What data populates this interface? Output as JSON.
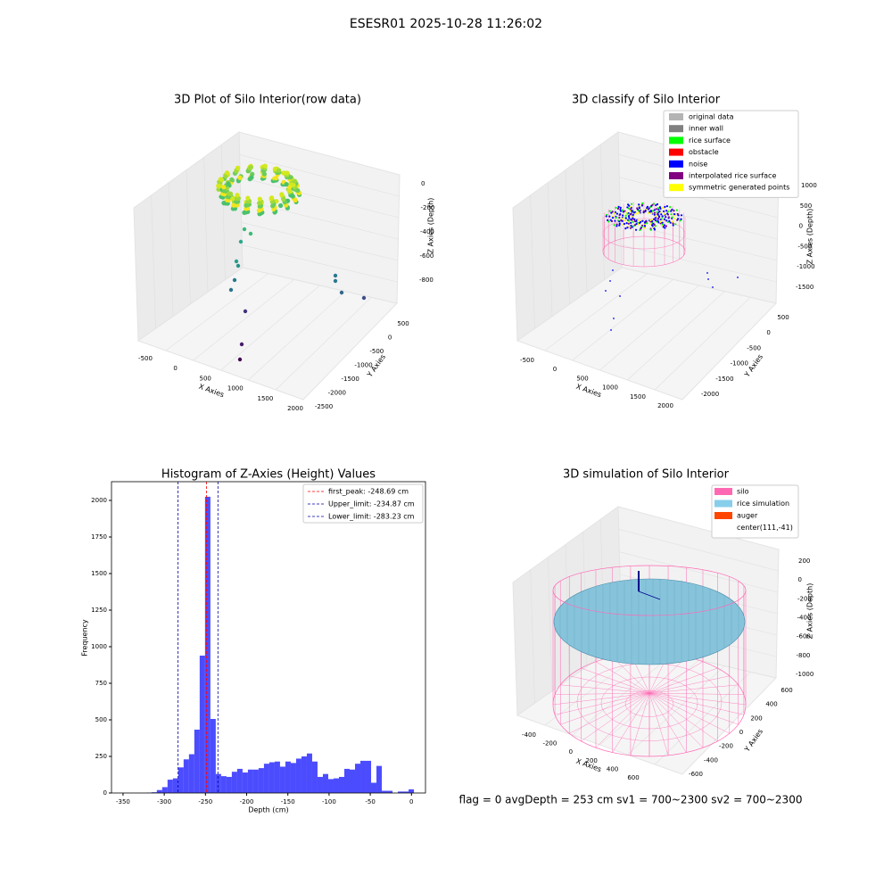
{
  "title": "ESESR01 2025-10-28 11:26:02",
  "footer": "flag = 0     avgDepth = 253 cm  sv1 = 700~2300  sv2 = 700~2300",
  "chart_data": [
    {
      "type": "histogram",
      "title": "Histogram of Z-Axies (Height) Values",
      "x_label": "Depth (cm)",
      "y_label": "Frequency",
      "color": "#0000ff",
      "bins": [
        -322,
        -315.5,
        -309,
        -302.5,
        -296,
        -289.5,
        -283,
        -276.5,
        -270,
        -263.5,
        -257,
        -250.5,
        -244,
        -237.5,
        -231,
        -224.5,
        -218,
        -211.5,
        -205,
        -198.5,
        -192,
        -185.5,
        -179,
        -172.5,
        -166,
        -159.5,
        -153,
        -146.5,
        -140,
        -133.5,
        -127,
        -120.5,
        -114,
        -107.5,
        -101,
        -94.5,
        -88,
        -81.5,
        -75,
        -68.5,
        -62,
        -55.5,
        -49,
        -42.5,
        -36,
        -29.5,
        -23,
        -16.5,
        -10,
        -3.5,
        3
      ],
      "values": [
        2,
        5,
        20,
        40,
        91,
        100,
        175,
        230,
        265,
        433,
        939,
        2025,
        506,
        130,
        115,
        110,
        145,
        165,
        140,
        160,
        160,
        170,
        200,
        210,
        215,
        180,
        215,
        205,
        235,
        250,
        270,
        215,
        110,
        130,
        95,
        100,
        110,
        165,
        160,
        200,
        220,
        220,
        70,
        185,
        15,
        15,
        0,
        10,
        10,
        25
      ],
      "xlim": [
        -364,
        17
      ],
      "ylim": [
        0,
        2128
      ],
      "xticks": [
        -350,
        -300,
        -250,
        -200,
        -150,
        -100,
        -50,
        0
      ],
      "yticks": [
        0,
        250,
        500,
        750,
        1000,
        1250,
        1500,
        1750,
        2000
      ],
      "vlines": [
        {
          "label": "first_peak: -248.69 cm",
          "value": -248.69,
          "color": "#ff0000"
        },
        {
          "label": "Upper_limit: -234.87 cm",
          "value": -234.87,
          "color": "#0000aa"
        },
        {
          "label": "Lower_limit: -283.23 cm",
          "value": -283.23,
          "color": "#0000aa"
        }
      ],
      "legend": "upper right"
    },
    {
      "type": "scatter3d",
      "title": "3D Plot of Silo Interior(row data)",
      "x_label": "X Axies",
      "y_label": "Y Axies",
      "z_label": "Z Axies (Depth)",
      "xticks": [
        -500,
        0,
        500,
        1000,
        1500,
        2000
      ],
      "yticks": [
        500,
        0,
        -500,
        -1000,
        -1500,
        -2000,
        -2500
      ],
      "zticks": [
        0,
        -200,
        -400,
        -600,
        -800
      ]
    },
    {
      "type": "scatter3d",
      "title": "3D classify of Silo Interior",
      "x_label": "X Axies",
      "y_label": "Y Axies",
      "z_label": "Z Axies (Depth)",
      "xticks": [
        -500,
        0,
        500,
        1000,
        1500,
        2000
      ],
      "yticks": [
        500,
        0,
        -500,
        -1000,
        -1500,
        -2000
      ],
      "zticks": [
        1000,
        500,
        0,
        -500,
        -1000,
        -1500
      ],
      "legend_entries": [
        {
          "name": "original data",
          "color": "#b4b4b4"
        },
        {
          "name": "inner wall",
          "color": "#808080"
        },
        {
          "name": "rice surface",
          "color": "#00ff00"
        },
        {
          "name": "obstacle",
          "color": "#ff0000"
        },
        {
          "name": "noise",
          "color": "#0000ff"
        },
        {
          "name": "interpolated rice surface",
          "color": "#800080"
        },
        {
          "name": "symmetric generated points",
          "color": "#ffff00"
        }
      ]
    },
    {
      "type": "surface3d",
      "title": "3D simulation of Silo Interior",
      "x_label": "X Axies",
      "y_label": "Y Axies",
      "z_label": "Z Axies (Depth)",
      "xticks": [
        -400,
        -200,
        0,
        200,
        400,
        600
      ],
      "yticks": [
        600,
        400,
        200,
        0,
        -200,
        -400,
        -600
      ],
      "zticks": [
        200,
        0,
        -200,
        -400,
        -600,
        -800,
        -1000
      ],
      "legend_entries": [
        {
          "name": "silo",
          "color": "#ff69b4"
        },
        {
          "name": "rice simulation",
          "color": "#87ceeb"
        },
        {
          "name": "auger",
          "color": "#ff4500"
        },
        {
          "name": "center(111,-41)",
          "color": "#ffffff"
        }
      ]
    }
  ]
}
